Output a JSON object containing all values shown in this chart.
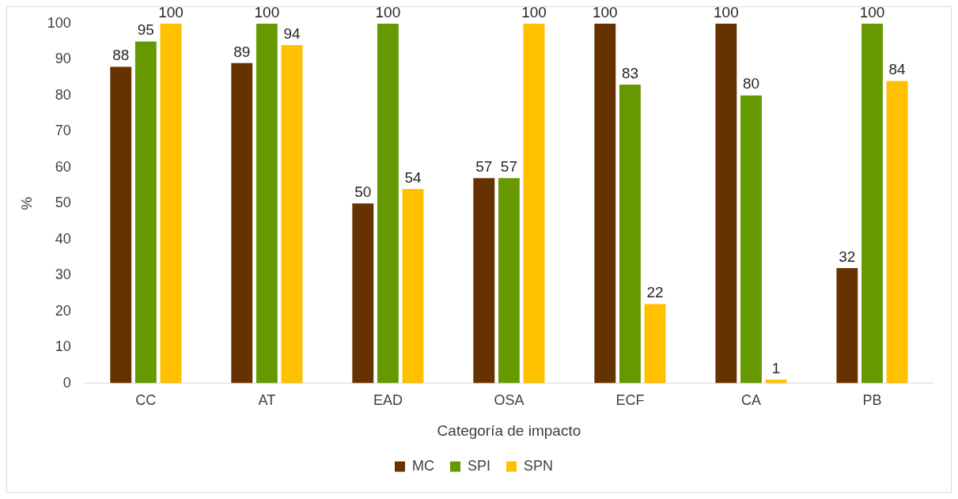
{
  "chart_data": {
    "type": "bar",
    "xlabel": "Categoría de impacto",
    "ylabel": "%",
    "categories": [
      "CC",
      "AT",
      "EAD",
      "OSA",
      "ECF",
      "CA",
      "PB"
    ],
    "series": [
      {
        "name": "MC",
        "color": "#663300",
        "values": [
          88,
          89,
          50,
          57,
          100,
          100,
          32
        ]
      },
      {
        "name": "SPI",
        "color": "#669900",
        "values": [
          95,
          100,
          100,
          57,
          83,
          80,
          100
        ]
      },
      {
        "name": "SPN",
        "color": "#ffc000",
        "values": [
          100,
          94,
          54,
          100,
          22,
          1,
          84
        ]
      }
    ],
    "ylim": [
      0,
      100
    ],
    "yticks": [
      0,
      10,
      20,
      30,
      40,
      50,
      60,
      70,
      80,
      90,
      100
    ],
    "grid": false,
    "legend": "bottom",
    "data_labels": true
  }
}
